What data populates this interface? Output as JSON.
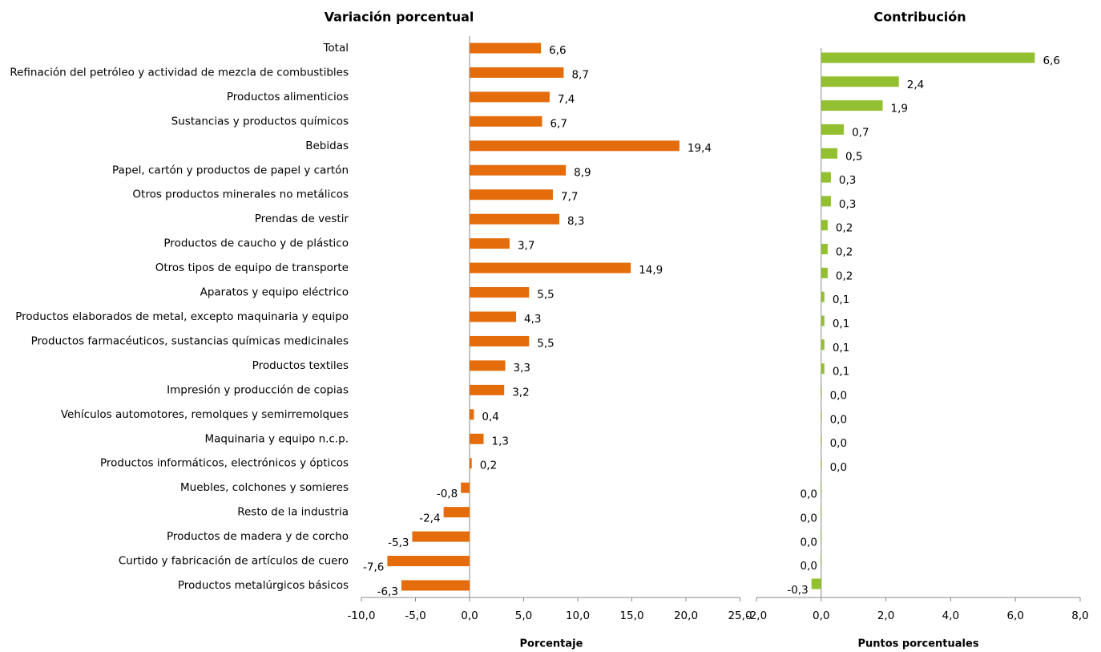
{
  "chart_data": [
    {
      "type": "bar",
      "orientation": "horizontal",
      "title": "Variación porcentual",
      "x_label": "Porcentaje",
      "color": "#E46C0A",
      "categories": [
        "Total",
        "Refinación del petróleo y actividad de mezcla de combustibles",
        "Productos alimenticios",
        "Sustancias y productos químicos",
        "Bebidas",
        "Papel, cartón y productos de papel y cartón",
        "Otros productos minerales no metálicos",
        "Prendas de vestir",
        "Productos de caucho y de plástico",
        "Otros tipos de equipo de transporte",
        "Aparatos y equipo eléctrico",
        "Productos elaborados de metal, excepto maquinaria y equipo",
        "Productos farmacéuticos, sustancias químicas medicinales",
        "Productos textiles",
        "Impresión y producción de copias",
        "Vehículos automotores, remolques y semirremolques",
        "Maquinaria y equipo n.c.p.",
        "Productos informáticos, electrónicos y ópticos",
        "Muebles, colchones y somieres",
        "Resto de la industria",
        "Productos de madera y de corcho",
        "Curtido y fabricación de artículos de cuero",
        "Productos metalúrgicos básicos"
      ],
      "values": [
        6.6,
        8.7,
        7.4,
        6.7,
        19.4,
        8.9,
        7.7,
        8.3,
        3.7,
        14.9,
        5.5,
        4.3,
        5.5,
        3.3,
        3.2,
        0.4,
        1.3,
        0.2,
        -0.8,
        -2.4,
        -5.3,
        -7.6,
        -6.3
      ],
      "value_labels": [
        "6,6",
        "8,7",
        "7,4",
        "6,7",
        "19,4",
        "8,9",
        "7,7",
        "8,3",
        "3,7",
        "14,9",
        "5,5",
        "4,3",
        "5,5",
        "3,3",
        "3,2",
        "0,4",
        "1,3",
        "0,2",
        "-0,8",
        "-2,4",
        "-5,3",
        "-7,6",
        "-6,3"
      ],
      "xlim": [
        -10,
        25
      ],
      "xticks": [
        {
          "value": -10,
          "label": "-10,0"
        },
        {
          "value": -5,
          "label": "-5,0"
        },
        {
          "value": 0,
          "label": "0,0"
        },
        {
          "value": 5,
          "label": "5,0"
        },
        {
          "value": 10,
          "label": "10,0"
        },
        {
          "value": 15,
          "label": "15,0"
        },
        {
          "value": 20,
          "label": "20,0"
        },
        {
          "value": 25,
          "label": "25,0"
        }
      ]
    },
    {
      "type": "bar",
      "orientation": "horizontal",
      "title": "Contribución",
      "x_label": "Puntos porcentuales",
      "color": "#92C031",
      "values": [
        6.6,
        2.4,
        1.9,
        0.7,
        0.5,
        0.3,
        0.3,
        0.2,
        0.2,
        0.2,
        0.1,
        0.1,
        0.1,
        0.1,
        0.02,
        0.02,
        0.02,
        0.02,
        -0.02,
        -0.02,
        -0.02,
        -0.02,
        -0.3
      ],
      "value_labels": [
        "6,6",
        "2,4",
        "1,9",
        "0,7",
        "0,5",
        "0,3",
        "0,3",
        "0,2",
        "0,2",
        "0,2",
        "0,1",
        "0,1",
        "0,1",
        "0,1",
        "0,0",
        "0,0",
        "0,0",
        "0,0",
        "0,0",
        "0,0",
        "0,0",
        "0,0",
        "-0,3"
      ],
      "xlim": [
        -2,
        8
      ],
      "xticks": [
        {
          "value": -2,
          "label": "-2,0"
        },
        {
          "value": 0,
          "label": "0,0"
        },
        {
          "value": 2,
          "label": "2,0"
        },
        {
          "value": 4,
          "label": "4,0"
        },
        {
          "value": 6,
          "label": "6,0"
        },
        {
          "value": 8,
          "label": "8,0"
        }
      ]
    }
  ]
}
